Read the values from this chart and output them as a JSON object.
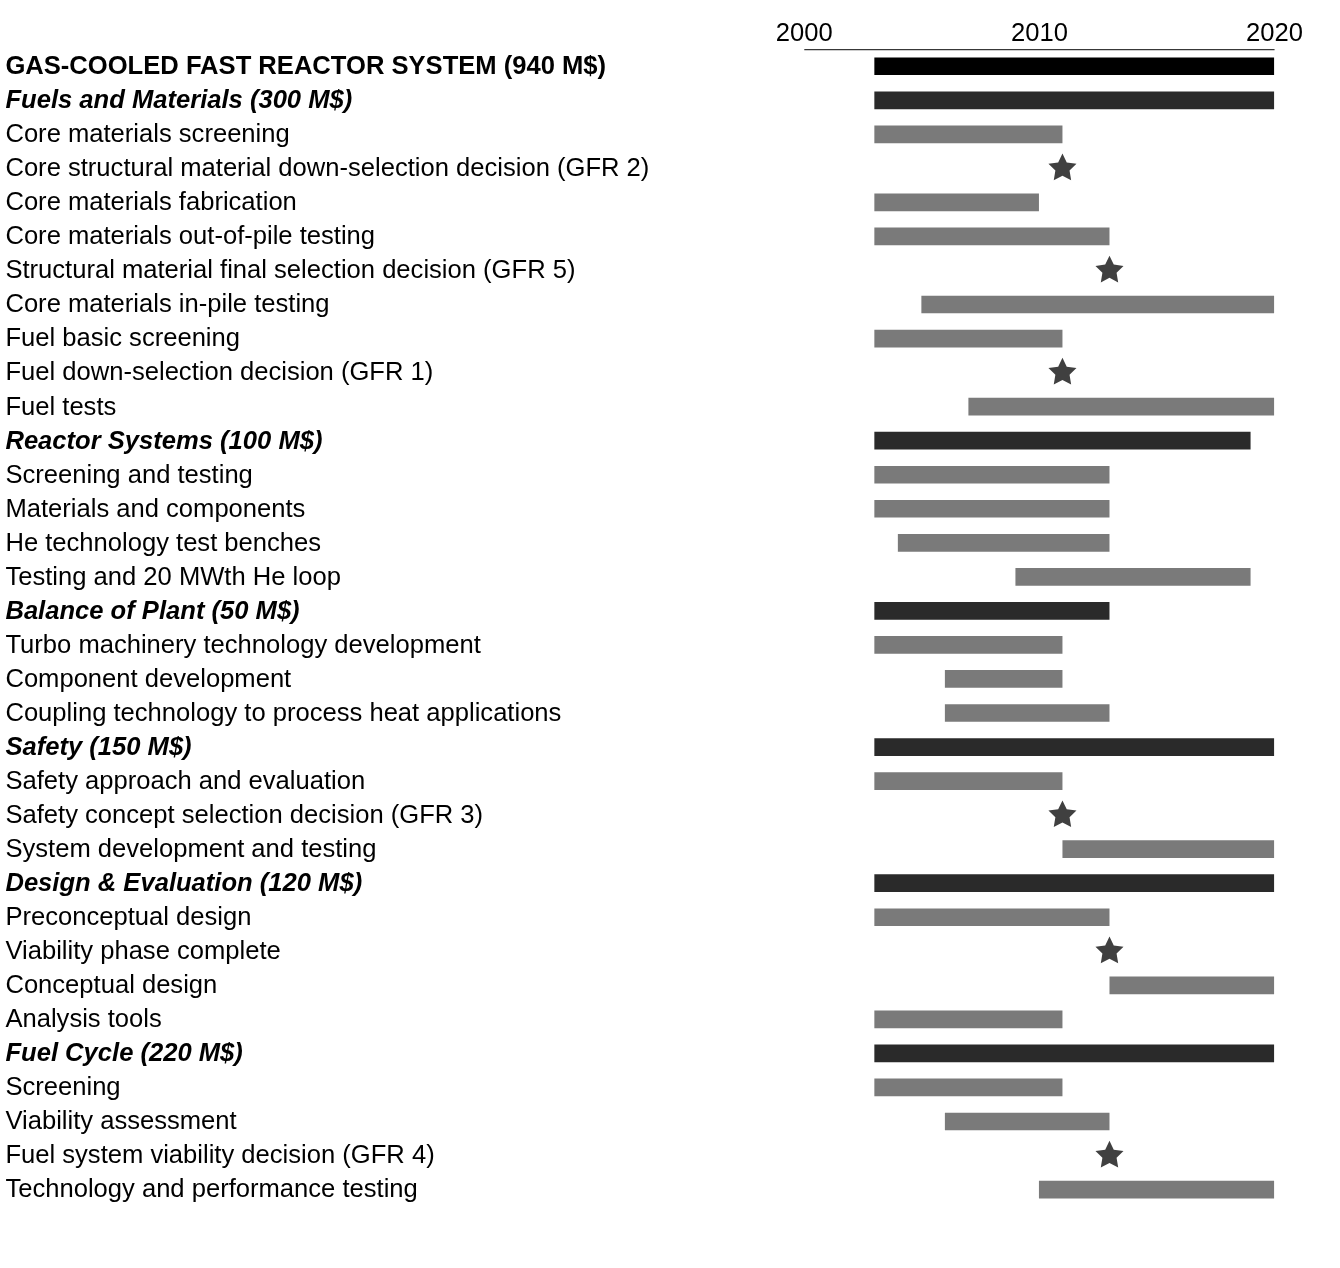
{
  "chart_data": {
    "type": "bar",
    "orientation": "horizontal",
    "categories": [
      "GAS-COOLED FAST REACTOR SYSTEM (940 M$)",
      "Fuels and Materials (300 M$)",
      "Core materials screening",
      "Core structural material down-selection decision (GFR 2)",
      "Core materials fabrication",
      "Core materials out-of-pile testing",
      "Structural material final selection decision (GFR 5)",
      "Core materials in-pile testing",
      "Fuel basic screening",
      "Fuel down-selection decision (GFR 1)",
      "Fuel tests",
      "Reactor Systems (100 M$)",
      "Screening and testing",
      "Materials and components",
      "He technology test benches",
      "Testing and 20 MWth He loop",
      "Balance of Plant (50 M$)",
      "Turbo machinery technology development",
      "Component development",
      "Coupling technology to process heat applications",
      "Safety (150 M$)",
      "Safety approach and evaluation",
      "Safety concept selection decision (GFR 3)",
      "System development and testing",
      "Design & Evaluation (120 M$)",
      "Preconceptual design",
      "Viability phase complete",
      "Conceptual design",
      "Analysis tools",
      "Fuel Cycle (220 M$)",
      "Screening",
      "Viability assessment",
      "Fuel system viability decision (GFR 4)",
      "Technology and performance testing"
    ],
    "series": [
      {
        "type": "bar",
        "axis": "x2",
        "base": [
          2003,
          2003,
          2003,
          null,
          2003,
          2003,
          null,
          2005,
          2003,
          null,
          2007,
          2003,
          2003,
          2003,
          2004,
          2009,
          2003,
          2003,
          2006,
          2006,
          2003,
          2003,
          null,
          2011,
          2003,
          2003,
          null,
          2013,
          2003,
          2003,
          2003,
          2006,
          null,
          2010
        ],
        "values": [
          17,
          17,
          8,
          null,
          7,
          10,
          null,
          15,
          8,
          null,
          13,
          16,
          10,
          10,
          9,
          10,
          10,
          8,
          5,
          7,
          17,
          8,
          null,
          9,
          17,
          10,
          null,
          7,
          8,
          17,
          8,
          7,
          null,
          10
        ],
        "colors": [
          "#000000",
          "#2a2a2a",
          "#7a7a7a",
          null,
          "#7a7a7a",
          "#7a7a7a",
          null,
          "#7a7a7a",
          "#7a7a7a",
          null,
          "#7a7a7a",
          "#2a2a2a",
          "#7a7a7a",
          "#7a7a7a",
          "#7a7a7a",
          "#7a7a7a",
          "#2a2a2a",
          "#7a7a7a",
          "#7a7a7a",
          "#7a7a7a",
          "#2a2a2a",
          "#7a7a7a",
          null,
          "#7a7a7a",
          "#2a2a2a",
          "#7a7a7a",
          null,
          "#7a7a7a",
          "#7a7a7a",
          "#2a2a2a",
          "#7a7a7a",
          "#7a7a7a",
          null,
          "#7a7a7a"
        ]
      },
      {
        "type": "scatter",
        "axis": "x2",
        "marker": "star",
        "color": "#404040",
        "values": [
          null,
          null,
          null,
          2011,
          null,
          null,
          2013,
          null,
          null,
          2011,
          null,
          null,
          null,
          null,
          null,
          null,
          null,
          null,
          null,
          null,
          null,
          null,
          2011,
          null,
          null,
          null,
          2013,
          null,
          null,
          null,
          null,
          null,
          2013,
          null
        ]
      }
    ],
    "x2lim": [
      2000,
      2020
    ],
    "x2ticks": [
      2000,
      2010,
      2020
    ],
    "grid": false
  }
}
